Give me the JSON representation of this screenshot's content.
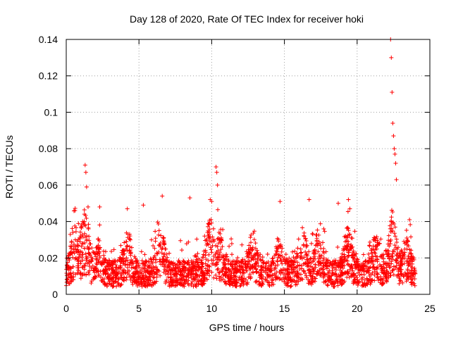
{
  "chart_data": {
    "type": "scatter",
    "title": "Day 128 of 2020, Rate Of TEC Index for receiver hoki",
    "xlabel": "GPS time / hours",
    "ylabel": "ROTI / TECUs",
    "xlim": [
      0,
      25
    ],
    "ylim": [
      0,
      0.14
    ],
    "x_ticks": [
      "0",
      "5",
      "10",
      "15",
      "20",
      "25"
    ],
    "y_ticks": [
      "0",
      "0.02",
      "0.04",
      "0.06",
      "0.08",
      "0.1",
      "0.12",
      "0.14"
    ],
    "grid": true,
    "marker": "+",
    "color": "#ff0000",
    "series": [
      {
        "name": "ROTI",
        "description": "dense cloud of points roughly 0.005-0.03 TECU across 0-24 h; notable outliers listed",
        "x": [
          0.6,
          1.3,
          1.35,
          1.4,
          1.5,
          2.3,
          4.2,
          5.3,
          6.6,
          8.5,
          9.9,
          10.0,
          10.3,
          10.35,
          10.4,
          14.7,
          16.7,
          18.7,
          19.4,
          19.5,
          22.3,
          22.35,
          22.4,
          22.45,
          22.5,
          22.55,
          22.6,
          22.65,
          22.7,
          23.6
        ],
        "y": [
          0.046,
          0.071,
          0.067,
          0.059,
          0.048,
          0.048,
          0.047,
          0.049,
          0.054,
          0.053,
          0.052,
          0.051,
          0.07,
          0.067,
          0.06,
          0.051,
          0.052,
          0.05,
          0.052,
          0.047,
          0.14,
          0.13,
          0.111,
          0.094,
          0.087,
          0.08,
          0.077,
          0.072,
          0.063,
          0.041
        ]
      }
    ]
  }
}
